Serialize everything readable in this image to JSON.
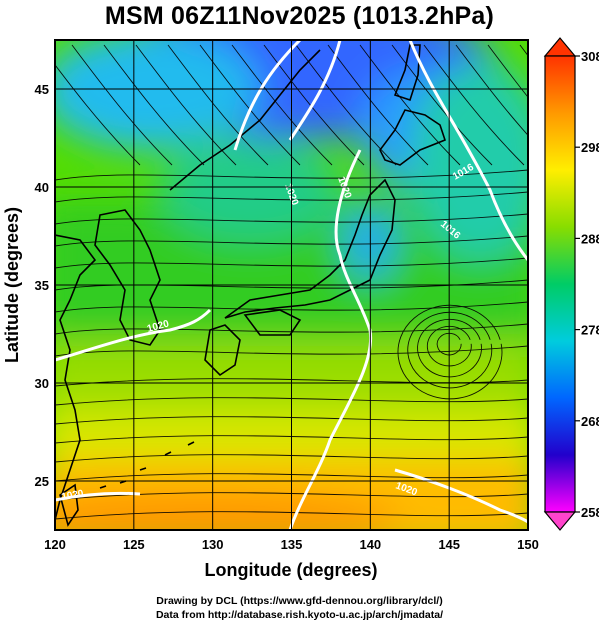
{
  "title": "MSM 06Z11Nov2025 (1013.2hPa)",
  "map": {
    "x_label": "Longitude (degrees)",
    "y_label": "Latitude  (degrees)",
    "lon_range": [
      120,
      150
    ],
    "lat_range": [
      22.5,
      47.5
    ],
    "lon_ticks": [
      "120",
      "125",
      "130",
      "135",
      "140",
      "145",
      "150"
    ],
    "lat_ticks": [
      "25",
      "30",
      "35",
      "40",
      "45"
    ],
    "shading_variable": "temperature (K)",
    "overlay": [
      "streamlines",
      "white isobars",
      "coastlines",
      "lat/lon grid"
    ]
  },
  "colorbar": {
    "min": 258,
    "max": 308,
    "labels": [
      "308",
      "298",
      "288",
      "278",
      "268",
      "258"
    ],
    "colors": [
      "#ff00ff",
      "#2200cc",
      "#0066ff",
      "#00ccdd",
      "#00cc66",
      "#88dd00",
      "#ffee00",
      "#ff9900",
      "#ff3300"
    ]
  },
  "isobar_labels": [
    "1020",
    "1020",
    "1016",
    "1016",
    "1020",
    "1020",
    "1020"
  ],
  "credits": {
    "line1": "Drawing by DCL (https://www.gfd-dennou.org/library/dcl/)",
    "line2": "Data from http://database.rish.kyoto-u.ac.jp/arch/jmadata/"
  }
}
